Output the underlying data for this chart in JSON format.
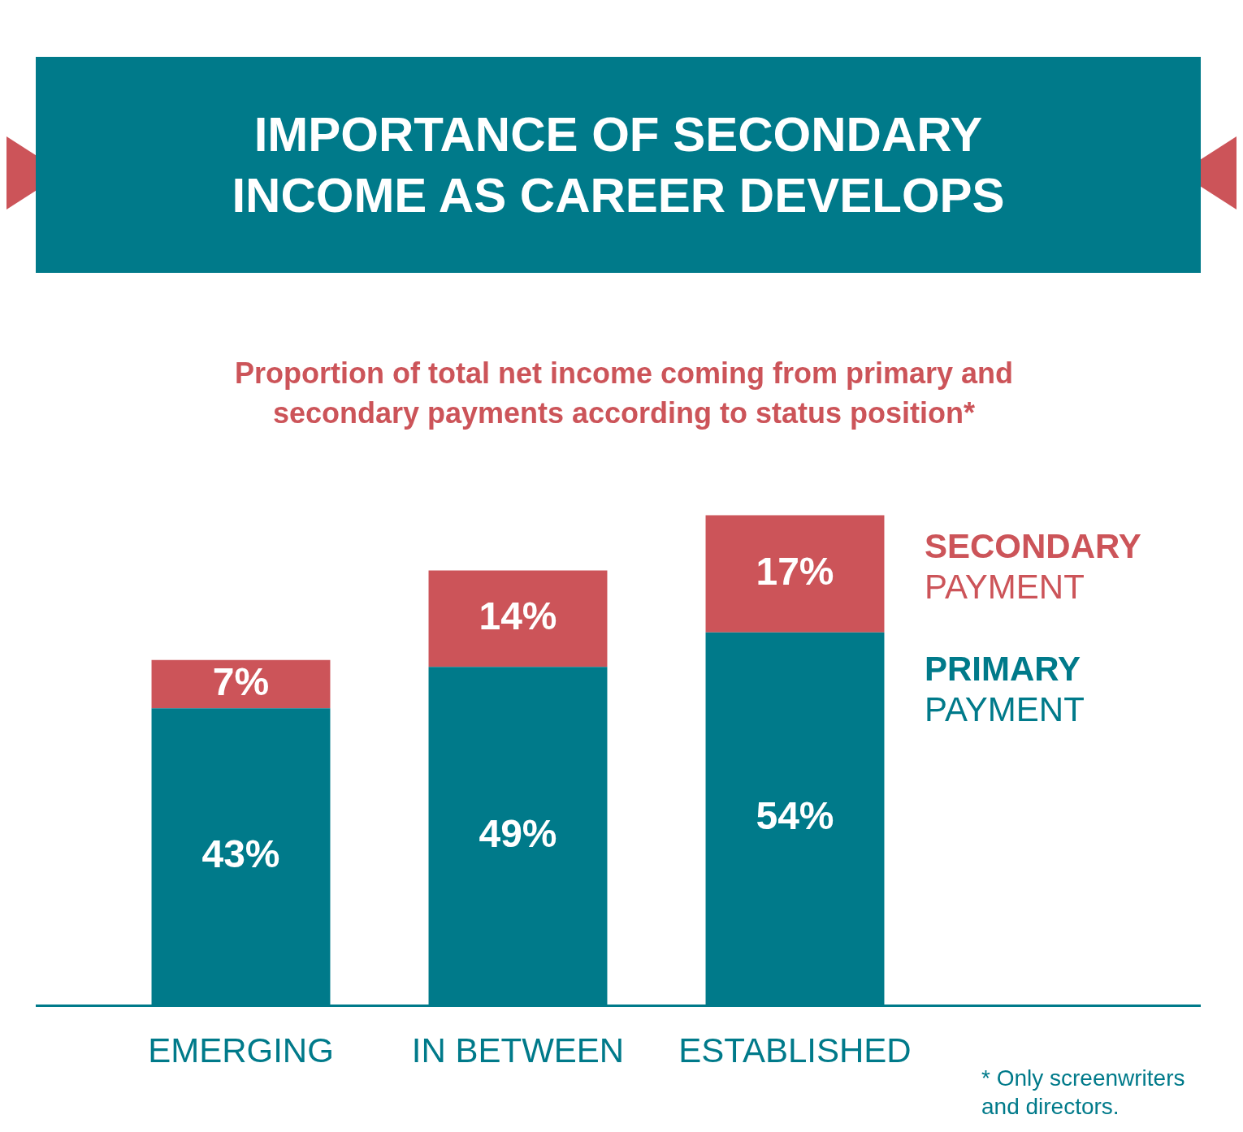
{
  "chart_data": {
    "type": "bar",
    "title": "IMPORTANCE OF SECONDARY INCOME AS CAREER DEVELOPS",
    "subtitle": "Proportion of total net income coming from primary and secondary payments according to status position*",
    "categories": [
      "EMERGING",
      "IN BETWEEN",
      "ESTABLISHED"
    ],
    "stacked": true,
    "series": [
      {
        "name": "PRIMARY PAYMENT",
        "color": "#007a8a",
        "values": [
          43,
          49,
          54
        ],
        "value_labels": [
          "43%",
          "49%",
          "54%"
        ]
      },
      {
        "name": "SECONDARY PAYMENT",
        "color": "#cc5459",
        "values": [
          7,
          14,
          17
        ],
        "value_labels": [
          "7%",
          "14%",
          "17%"
        ]
      }
    ],
    "legend": "right",
    "annotations": [
      "* Only screenwriters and directors."
    ]
  }
}
